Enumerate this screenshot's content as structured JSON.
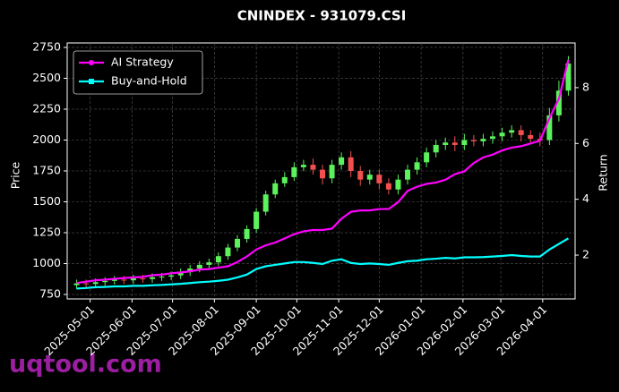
{
  "chart_data": {
    "type": "candlestick",
    "title": "CNINDEX - 931079.CSI",
    "y_label": "Price",
    "y2_label": "Return",
    "watermark": "uqtool.com",
    "x": [
      "2025-04-21",
      "2025-04-28",
      "2025-05-05",
      "2025-05-12",
      "2025-05-19",
      "2025-05-26",
      "2025-06-02",
      "2025-06-09",
      "2025-06-16",
      "2025-06-23",
      "2025-06-30",
      "2025-07-07",
      "2025-07-14",
      "2025-07-21",
      "2025-07-28",
      "2025-08-04",
      "2025-08-11",
      "2025-08-18",
      "2025-08-25",
      "2025-09-01",
      "2025-09-08",
      "2025-09-15",
      "2025-09-22",
      "2025-09-29",
      "2025-10-06",
      "2025-10-13",
      "2025-10-20",
      "2025-10-27",
      "2025-11-03",
      "2025-11-10",
      "2025-11-17",
      "2025-11-24",
      "2025-12-01",
      "2025-12-08",
      "2025-12-15",
      "2025-12-22",
      "2025-12-29",
      "2026-01-05",
      "2026-01-12",
      "2026-01-19",
      "2026-01-26",
      "2026-02-02",
      "2026-02-09",
      "2026-02-16",
      "2026-02-23",
      "2026-03-02",
      "2026-03-09",
      "2026-03-16",
      "2026-03-23",
      "2026-03-30",
      "2026-04-06",
      "2026-04-13",
      "2026-04-20"
    ],
    "open": [
      825,
      840,
      835,
      850,
      860,
      870,
      865,
      880,
      875,
      890,
      895,
      905,
      930,
      960,
      990,
      1010,
      1060,
      1130,
      1200,
      1280,
      1420,
      1560,
      1650,
      1700,
      1780,
      1800,
      1760,
      1690,
      1800,
      1860,
      1750,
      1680,
      1720,
      1650,
      1600,
      1680,
      1760,
      1820,
      1900,
      1960,
      1980,
      1960,
      2000,
      1990,
      2010,
      2030,
      2060,
      2080,
      2040,
      2010,
      2000,
      2200,
      2400
    ],
    "high": [
      870,
      870,
      880,
      890,
      900,
      900,
      910,
      910,
      920,
      925,
      935,
      960,
      990,
      1020,
      1040,
      1090,
      1160,
      1230,
      1310,
      1450,
      1590,
      1680,
      1740,
      1820,
      1840,
      1850,
      1800,
      1840,
      1900,
      1910,
      1790,
      1760,
      1760,
      1690,
      1720,
      1800,
      1860,
      1940,
      2000,
      2020,
      2030,
      2050,
      2040,
      2050,
      2070,
      2100,
      2120,
      2120,
      2080,
      2060,
      2260,
      2480,
      2680
    ],
    "low": [
      795,
      805,
      805,
      820,
      830,
      835,
      835,
      845,
      845,
      860,
      865,
      875,
      900,
      930,
      960,
      980,
      1030,
      1100,
      1170,
      1250,
      1390,
      1530,
      1620,
      1670,
      1750,
      1720,
      1640,
      1650,
      1760,
      1700,
      1630,
      1640,
      1600,
      1560,
      1560,
      1640,
      1720,
      1780,
      1860,
      1920,
      1910,
      1920,
      1950,
      1950,
      1970,
      1990,
      2020,
      1990,
      1970,
      1950,
      1960,
      2150,
      2360
    ],
    "close": [
      840,
      835,
      850,
      860,
      870,
      865,
      880,
      875,
      890,
      895,
      905,
      930,
      960,
      990,
      1010,
      1060,
      1130,
      1200,
      1280,
      1420,
      1560,
      1650,
      1700,
      1780,
      1800,
      1760,
      1690,
      1800,
      1860,
      1750,
      1680,
      1720,
      1650,
      1600,
      1680,
      1760,
      1820,
      1900,
      1960,
      1980,
      1960,
      2000,
      1990,
      2010,
      2030,
      2060,
      2080,
      2040,
      2010,
      2000,
      2200,
      2400,
      2620
    ],
    "up_color": "#5cf25c",
    "down_color": "#f25050",
    "series": [
      {
        "name": "AI Strategy",
        "color": "#ff00ff",
        "axis": "y2",
        "values": [
          1.0,
          1.05,
          1.1,
          1.12,
          1.15,
          1.18,
          1.2,
          1.22,
          1.28,
          1.3,
          1.35,
          1.38,
          1.42,
          1.48,
          1.5,
          1.55,
          1.6,
          1.75,
          1.95,
          2.2,
          2.35,
          2.45,
          2.6,
          2.75,
          2.85,
          2.9,
          2.9,
          2.95,
          3.3,
          3.55,
          3.6,
          3.6,
          3.65,
          3.65,
          3.9,
          4.3,
          4.45,
          4.55,
          4.6,
          4.7,
          4.9,
          5.0,
          5.3,
          5.5,
          5.6,
          5.75,
          5.85,
          5.9,
          6.0,
          6.1,
          6.9,
          7.6,
          9.0
        ]
      },
      {
        "name": "Buy-and-Hold",
        "color": "#00ffff",
        "axis": "y2",
        "values": [
          0.8,
          0.82,
          0.85,
          0.86,
          0.88,
          0.88,
          0.9,
          0.9,
          0.92,
          0.93,
          0.95,
          0.97,
          1.0,
          1.03,
          1.05,
          1.08,
          1.12,
          1.2,
          1.3,
          1.5,
          1.6,
          1.65,
          1.7,
          1.75,
          1.75,
          1.72,
          1.68,
          1.8,
          1.85,
          1.72,
          1.68,
          1.7,
          1.68,
          1.65,
          1.72,
          1.78,
          1.8,
          1.85,
          1.87,
          1.9,
          1.88,
          1.92,
          1.92,
          1.93,
          1.95,
          1.97,
          2.0,
          1.97,
          1.95,
          1.95,
          2.2,
          2.4,
          2.6
        ]
      }
    ],
    "xlim": [
      "2025-04-14",
      "2026-04-25"
    ],
    "xticks": [
      "2025-05-01",
      "2025-06-01",
      "2025-07-01",
      "2025-08-01",
      "2025-09-01",
      "2025-10-01",
      "2025-11-01",
      "2025-12-01",
      "2026-01-01",
      "2026-02-01",
      "2026-03-01",
      "2026-04-01"
    ],
    "ylim": [
      714,
      2786
    ],
    "yticks": [
      750,
      1000,
      1250,
      1500,
      1750,
      2000,
      2250,
      2500,
      2750
    ],
    "y2lim": [
      0.43,
      9.6
    ],
    "y2ticks": [
      2,
      4,
      6,
      8
    ],
    "grid": true,
    "legend": "upper left"
  }
}
